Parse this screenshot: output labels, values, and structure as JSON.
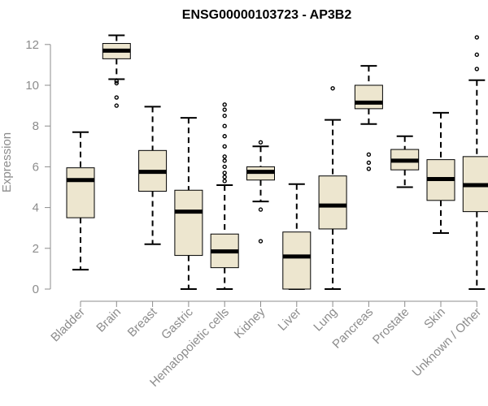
{
  "chart_data": {
    "type": "boxplot",
    "title": "ENSG00000103723 - AP3B2",
    "xlabel": "",
    "ylabel": "Expression",
    "ylim": [
      0,
      12.5
    ],
    "yticks": [
      0,
      2,
      4,
      6,
      8,
      10,
      12
    ],
    "categories": [
      "Bladder",
      "Brain",
      "Breast",
      "Gastric",
      "Hematopoietic cells",
      "Kidney",
      "Liver",
      "Lung",
      "Pancreas",
      "Prostate",
      "Skin",
      "Unknown / Other"
    ],
    "boxes": [
      {
        "min": 0.95,
        "q1": 3.5,
        "median": 5.35,
        "q3": 5.95,
        "max": 7.7,
        "outliers": []
      },
      {
        "min": 10.3,
        "q1": 11.3,
        "median": 11.7,
        "q3": 12.05,
        "max": 12.45,
        "outliers": [
          10.2,
          10.1,
          9.4,
          9.0
        ]
      },
      {
        "min": 2.2,
        "q1": 4.8,
        "median": 5.75,
        "q3": 6.8,
        "max": 8.95,
        "outliers": []
      },
      {
        "min": 0.0,
        "q1": 1.65,
        "median": 3.8,
        "q3": 4.85,
        "max": 8.4,
        "outliers": []
      },
      {
        "min": 0.0,
        "q1": 1.05,
        "median": 1.85,
        "q3": 2.7,
        "max": 5.1,
        "outliers": [
          5.3,
          5.5,
          5.7,
          6.0,
          6.3,
          6.5,
          7.0,
          7.5,
          8.0,
          8.5,
          8.8,
          9.05
        ]
      },
      {
        "min": 4.3,
        "q1": 5.35,
        "median": 5.75,
        "q3": 6.0,
        "max": 7.0,
        "outliers": [
          7.2,
          3.9,
          2.35
        ]
      },
      {
        "min": 0.0,
        "q1": 0.0,
        "median": 1.6,
        "q3": 2.8,
        "max": 5.15,
        "outliers": []
      },
      {
        "min": 0.0,
        "q1": 2.95,
        "median": 4.1,
        "q3": 5.55,
        "max": 8.3,
        "outliers": [
          9.85
        ]
      },
      {
        "min": 8.1,
        "q1": 8.85,
        "median": 9.15,
        "q3": 10.0,
        "max": 10.95,
        "outliers": [
          6.6,
          6.2,
          5.9
        ]
      },
      {
        "min": 5.0,
        "q1": 5.85,
        "median": 6.3,
        "q3": 6.85,
        "max": 7.5,
        "outliers": []
      },
      {
        "min": 2.75,
        "q1": 4.35,
        "median": 5.4,
        "q3": 6.35,
        "max": 8.65,
        "outliers": []
      },
      {
        "min": 0.0,
        "q1": 3.8,
        "median": 5.1,
        "q3": 6.5,
        "max": 10.25,
        "outliers": [
          10.8,
          11.5,
          12.35
        ]
      }
    ]
  }
}
